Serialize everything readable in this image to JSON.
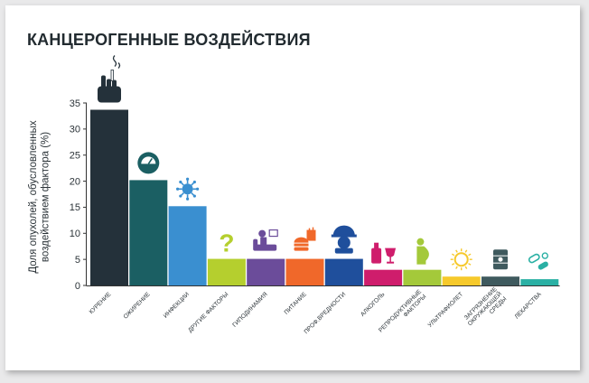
{
  "title": "КАНЦЕРОГЕННЫЕ ВОЗДЕЙСТВИЯ",
  "chart_data": {
    "type": "bar",
    "title": "КАНЦЕРОГЕННЫЕ ВОЗДЕЙСТВИЯ",
    "xlabel": "",
    "ylabel": "Доля опухолей, обусловленных воздействием фактора (%)",
    "ylabel_lines": [
      "Доля опухолей, обусловленных",
      "воздействием фактора (%)"
    ],
    "ylim": [
      0,
      35
    ],
    "yticks": [
      0,
      5,
      10,
      15,
      20,
      25,
      30,
      35
    ],
    "grid": false,
    "legend": "none",
    "categories": [
      "КУРЕНИЕ",
      "ОЖИРЕНИЕ",
      "ИНФЕКЦИИ",
      "ДРУГИЕ ФАКТОРЫ",
      "ГИПОДИНАМИЯ",
      "ПИТАНИЕ",
      "ПРОФ.ВРЕДНОСТИ",
      "АЛКОГОЛЬ",
      "РЕПРОДУКТИВНЫЕ ФАКТОРЫ",
      "УЛЬТРАФИОЛЕТ",
      "ЗАГРЯЗНЕНИЕ ОКРУЖАЮЩЕЙ СРЕДЫ",
      "ЛЕКАРСТВА"
    ],
    "category_lines": [
      [
        "КУРЕНИЕ"
      ],
      [
        "ОЖИРЕНИЕ"
      ],
      [
        "ИНФЕКЦИИ"
      ],
      [
        "ДРУГИЕ ФАКТОРЫ"
      ],
      [
        "ГИПОДИНАМИЯ"
      ],
      [
        "ПИТАНИЕ"
      ],
      [
        "ПРОФ.ВРЕДНОСТИ"
      ],
      [
        "АЛКОГОЛЬ"
      ],
      [
        "РЕПРОДУКТИВНЫЕ",
        "ФАКТОРЫ"
      ],
      [
        "УЛЬТРАФИОЛЕТ"
      ],
      [
        "ЗАГРЯЗНЕНИЕ",
        "ОКРУЖАЮЩЕЙ",
        "СРЕДЫ"
      ],
      [
        "ЛЕКАРСТВА"
      ]
    ],
    "values": [
      33.7,
      20.2,
      15.2,
      5.1,
      5.1,
      5.1,
      5.1,
      3.0,
      3.0,
      1.7,
      1.7,
      1.2
    ],
    "colors": [
      "#24313a",
      "#1b5f63",
      "#3a8fd0",
      "#b5cf2e",
      "#6b4c9a",
      "#f0682a",
      "#1f4f9c",
      "#cf1d6c",
      "#a4c93a",
      "#f6c92b",
      "#3f5a5e",
      "#2ab0a4"
    ],
    "icons": [
      "hand-cigarette-icon",
      "scale-icon",
      "virus-icon",
      "question-mark-icon",
      "couch-person-icon",
      "burger-fries-icon",
      "hard-hat-worker-icon",
      "wine-bottle-glass-icon",
      "pregnant-woman-icon",
      "sun-icon",
      "barrel-hazard-icon",
      "pills-icon"
    ]
  }
}
